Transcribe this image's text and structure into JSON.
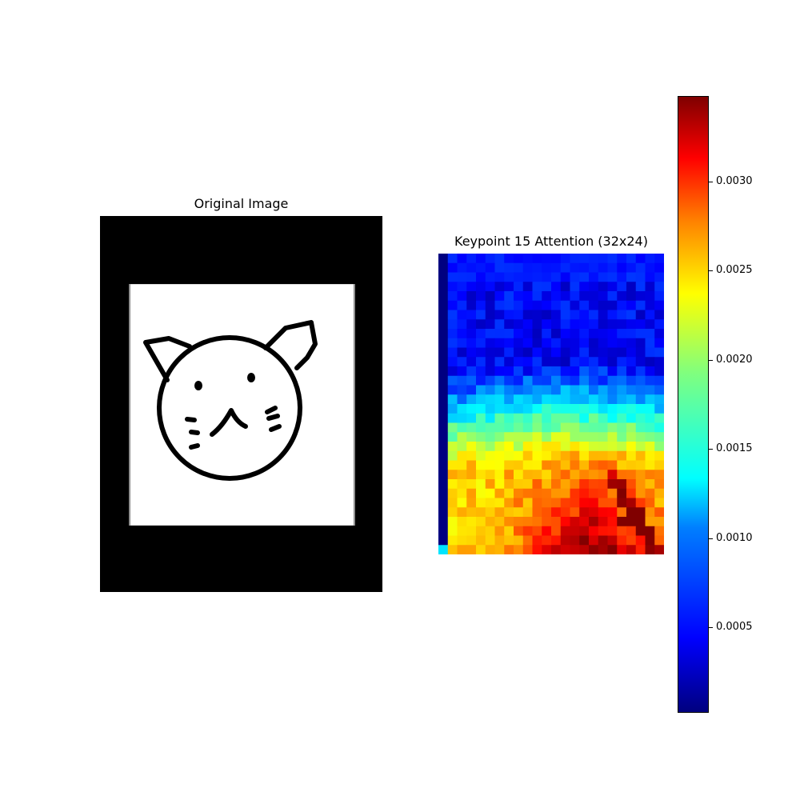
{
  "chart_data": [
    {
      "type": "image",
      "title": "Original Image",
      "content": "cat face line drawing"
    },
    {
      "type": "heatmap",
      "title": "Keypoint 15 Attention (32x24)",
      "rows": 32,
      "cols": 24,
      "colormap": "jet",
      "colorbar": {
        "ticks": [
          0.0005,
          0.001,
          0.0015,
          0.002,
          0.0025,
          0.003
        ],
        "tick_labels": [
          "0.0005",
          "0.0010",
          "0.0015",
          "0.0020",
          "0.0025",
          "0.0030"
        ],
        "range": [
          2e-05,
          0.00348
        ]
      }
    }
  ]
}
